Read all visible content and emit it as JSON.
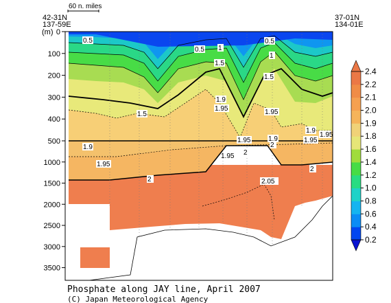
{
  "chart_data": {
    "type": "heatmap",
    "title": "Phosphate along JAY line, April 2007",
    "credit": "(C) Japan Meteorological Agency",
    "scale_bar_label": "60 n. miles",
    "ylabel": "(m)",
    "left_station": {
      "lat": "42-31N",
      "lon": "137-59E"
    },
    "right_station": {
      "lat": "37-01N",
      "lon": "134-01E"
    },
    "y_axis": {
      "upper_ticks": [
        "0",
        "100",
        "200",
        "300",
        "400",
        "500"
      ],
      "lower_ticks": [
        "1000",
        "1500",
        "2000",
        "2500",
        "3000",
        "3500"
      ],
      "upper_range": [
        0,
        500
      ],
      "lower_range": [
        500,
        3800
      ]
    },
    "colorbar": {
      "levels": [
        0.2,
        0.4,
        0.6,
        0.8,
        1.0,
        1.2,
        1.4,
        1.6,
        1.8,
        1.9,
        2.0,
        2.1,
        2.2,
        2.4
      ],
      "labels": [
        "0.2",
        "0.4",
        "0.6",
        "0.8",
        "1.0",
        "1.2",
        "1.4",
        "1.6",
        "1.8",
        "1.9",
        "2.0",
        "2.1",
        "2.2",
        "2.4"
      ],
      "colors": [
        "#0a14d2",
        "#0046f0",
        "#0a8cf5",
        "#14b4f0",
        "#1ed2c8",
        "#28dc82",
        "#46dc46",
        "#a0dc3c",
        "#e6e678",
        "#f0d278",
        "#f5b45a",
        "#f5a050",
        "#f08c46",
        "#eb7846"
      ]
    },
    "contour_labels": [
      "0.5",
      "0.5",
      "0.5",
      "1",
      "1",
      "1.5",
      "1.5",
      "1.5",
      "1.9",
      "1.95",
      "1.95",
      "1.9",
      "1.9",
      "1.95",
      "1.95",
      "1.95",
      "1.9",
      "1.95",
      "1.95",
      "2",
      "2",
      "2",
      "2",
      "2.05"
    ],
    "bottom_depth_m_along_section": [
      3650,
      3650,
      3650,
      3650,
      3650,
      3500,
      3300,
      3100,
      2850,
      2750,
      2700,
      2650,
      2620,
      2620,
      2650,
      2700,
      2800,
      2900,
      3000,
      3000,
      2850,
      2500,
      2200,
      2000,
      1850
    ]
  }
}
